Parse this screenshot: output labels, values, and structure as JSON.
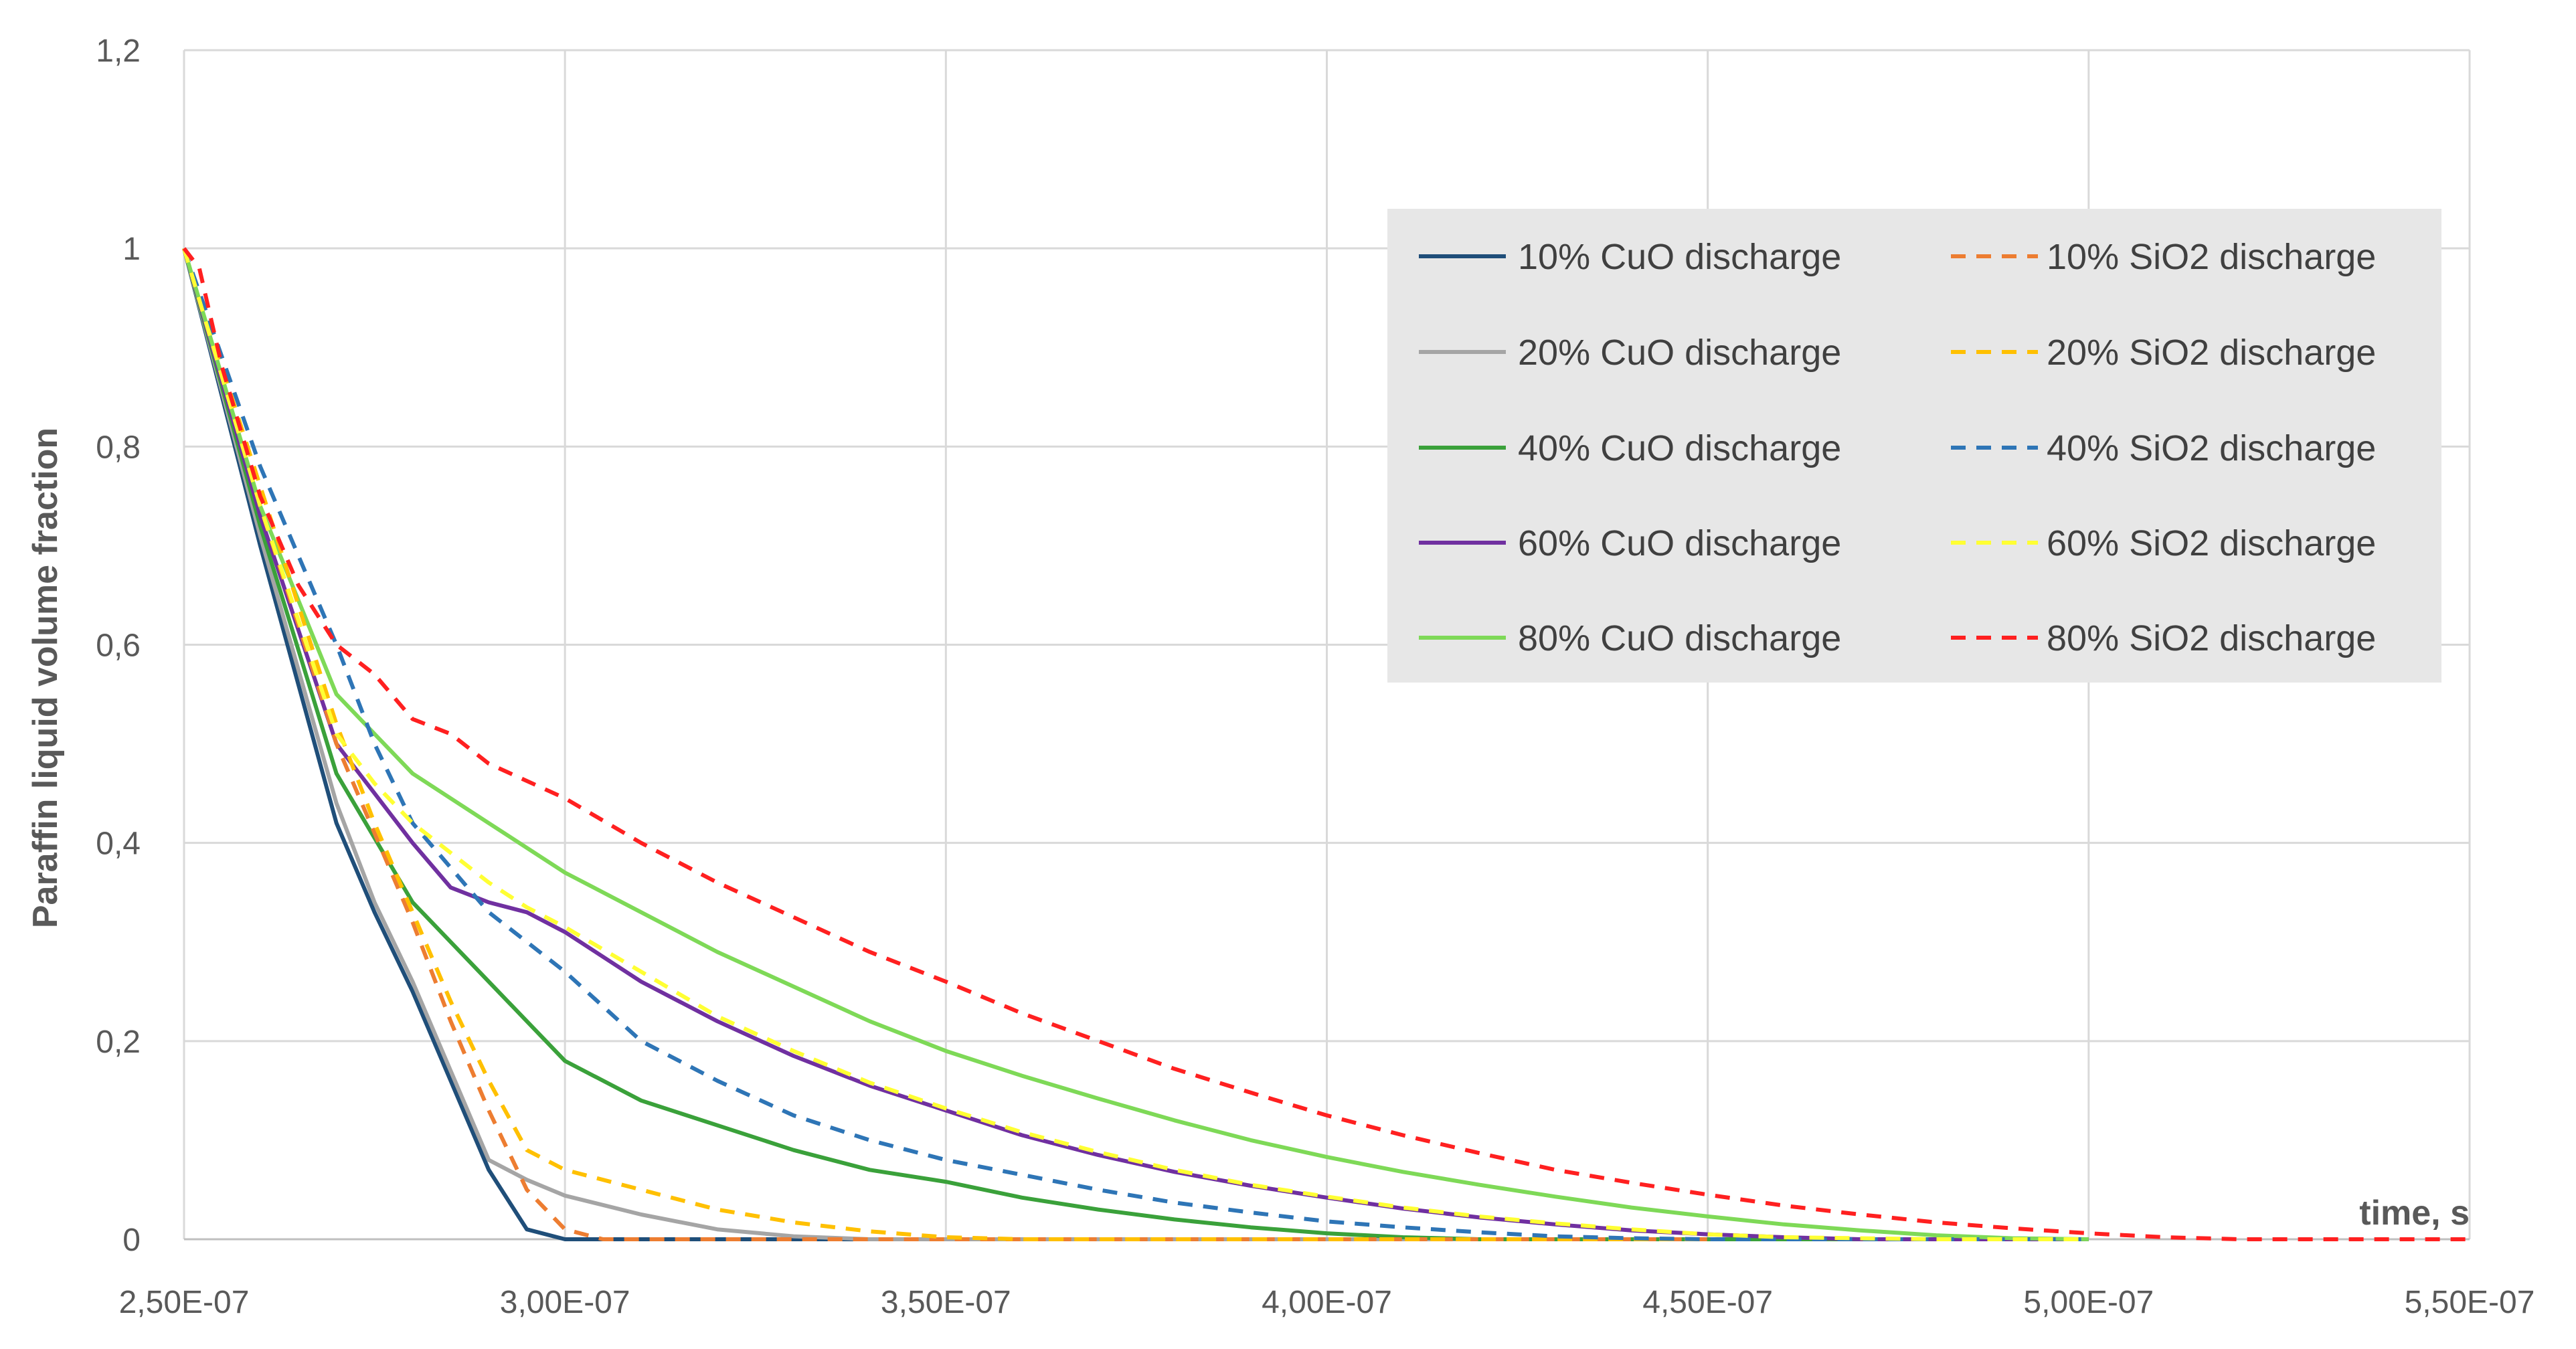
{
  "chart_data": {
    "type": "line",
    "xlabel": "time, s",
    "ylabel": "Paraffin  liquid volume fraction",
    "xlim": [
      2.5e-07,
      5.5e-07
    ],
    "ylim": [
      0,
      1.2
    ],
    "x_ticks": [
      "2,50E-07",
      "3,00E-07",
      "3,50E-07",
      "4,00E-07",
      "4,50E-07",
      "5,00E-07",
      "5,50E-07"
    ],
    "y_ticks": [
      "0",
      "0,2",
      "0,4",
      "0,6",
      "0,8",
      "1",
      "1,2"
    ],
    "grid": true,
    "legend_position": "top-right",
    "series": [
      {
        "name": "10% CuO discharge",
        "color": "#1f4e79",
        "dash": false,
        "points": [
          [
            2.5e-07,
            1
          ],
          [
            2.6e-07,
            0.7
          ],
          [
            2.7e-07,
            0.42
          ],
          [
            2.75e-07,
            0.33
          ],
          [
            2.8e-07,
            0.25
          ],
          [
            2.85e-07,
            0.16
          ],
          [
            2.9e-07,
            0.07
          ],
          [
            2.95e-07,
            0.01
          ],
          [
            3e-07,
            0
          ],
          [
            5e-07,
            0
          ]
        ]
      },
      {
        "name": "20% CuO discharge",
        "color": "#a5a5a5",
        "dash": false,
        "points": [
          [
            2.5e-07,
            1
          ],
          [
            2.6e-07,
            0.71
          ],
          [
            2.7e-07,
            0.44
          ],
          [
            2.75e-07,
            0.34
          ],
          [
            2.8e-07,
            0.26
          ],
          [
            2.85e-07,
            0.17
          ],
          [
            2.9e-07,
            0.08
          ],
          [
            2.95e-07,
            0.06
          ],
          [
            3e-07,
            0.044
          ],
          [
            3.1e-07,
            0.025
          ],
          [
            3.2e-07,
            0.01
          ],
          [
            3.3e-07,
            0.003
          ],
          [
            3.4e-07,
            0
          ],
          [
            5e-07,
            0
          ]
        ]
      },
      {
        "name": "40% CuO discharge",
        "color": "#3aa13a",
        "dash": false,
        "points": [
          [
            2.5e-07,
            1
          ],
          [
            2.6e-07,
            0.72
          ],
          [
            2.7e-07,
            0.47
          ],
          [
            2.8e-07,
            0.34
          ],
          [
            2.9e-07,
            0.26
          ],
          [
            3e-07,
            0.18
          ],
          [
            3.1e-07,
            0.14
          ],
          [
            3.2e-07,
            0.115
          ],
          [
            3.3e-07,
            0.09
          ],
          [
            3.4e-07,
            0.07
          ],
          [
            3.5e-07,
            0.058
          ],
          [
            3.6e-07,
            0.042
          ],
          [
            3.7e-07,
            0.03
          ],
          [
            3.8e-07,
            0.02
          ],
          [
            3.9e-07,
            0.012
          ],
          [
            4e-07,
            0.006
          ],
          [
            4.1e-07,
            0.002
          ],
          [
            4.2e-07,
            0
          ],
          [
            5e-07,
            0
          ]
        ]
      },
      {
        "name": "60% CuO discharge",
        "color": "#7030a0",
        "dash": false,
        "points": [
          [
            2.5e-07,
            1
          ],
          [
            2.6e-07,
            0.73
          ],
          [
            2.7e-07,
            0.5
          ],
          [
            2.75e-07,
            0.45
          ],
          [
            2.8e-07,
            0.4
          ],
          [
            2.85e-07,
            0.355
          ],
          [
            2.9e-07,
            0.34
          ],
          [
            2.95e-07,
            0.33
          ],
          [
            3e-07,
            0.31
          ],
          [
            3.1e-07,
            0.26
          ],
          [
            3.2e-07,
            0.22
          ],
          [
            3.3e-07,
            0.185
          ],
          [
            3.4e-07,
            0.155
          ],
          [
            3.5e-07,
            0.13
          ],
          [
            3.6e-07,
            0.105
          ],
          [
            3.7e-07,
            0.085
          ],
          [
            3.8e-07,
            0.068
          ],
          [
            3.9e-07,
            0.054
          ],
          [
            4e-07,
            0.042
          ],
          [
            4.1e-07,
            0.031
          ],
          [
            4.2e-07,
            0.022
          ],
          [
            4.3e-07,
            0.015
          ],
          [
            4.4e-07,
            0.009
          ],
          [
            4.5e-07,
            0.005
          ],
          [
            4.6e-07,
            0.002
          ],
          [
            4.7e-07,
            0
          ],
          [
            5e-07,
            0
          ]
        ]
      },
      {
        "name": "80% CuO discharge",
        "color": "#7ed957",
        "dash": false,
        "points": [
          [
            2.5e-07,
            1
          ],
          [
            2.6e-07,
            0.74
          ],
          [
            2.7e-07,
            0.55
          ],
          [
            2.75e-07,
            0.51
          ],
          [
            2.8e-07,
            0.47
          ],
          [
            2.9e-07,
            0.42
          ],
          [
            3e-07,
            0.37
          ],
          [
            3.1e-07,
            0.33
          ],
          [
            3.2e-07,
            0.29
          ],
          [
            3.3e-07,
            0.255
          ],
          [
            3.4e-07,
            0.22
          ],
          [
            3.5e-07,
            0.19
          ],
          [
            3.6e-07,
            0.165
          ],
          [
            3.7e-07,
            0.142
          ],
          [
            3.8e-07,
            0.12
          ],
          [
            3.9e-07,
            0.1
          ],
          [
            4e-07,
            0.083
          ],
          [
            4.1e-07,
            0.068
          ],
          [
            4.2e-07,
            0.055
          ],
          [
            4.3e-07,
            0.043
          ],
          [
            4.4e-07,
            0.032
          ],
          [
            4.5e-07,
            0.023
          ],
          [
            4.6e-07,
            0.015
          ],
          [
            4.7e-07,
            0.009
          ],
          [
            4.8e-07,
            0.004
          ],
          [
            4.9e-07,
            0.001
          ],
          [
            5e-07,
            0
          ]
        ]
      },
      {
        "name": "10% SiO2 discharge",
        "color": "#ed7d31",
        "dash": true,
        "points": [
          [
            2.5e-07,
            1
          ],
          [
            2.6e-07,
            0.74
          ],
          [
            2.7e-07,
            0.5
          ],
          [
            2.75e-07,
            0.41
          ],
          [
            2.8e-07,
            0.32
          ],
          [
            2.85e-07,
            0.22
          ],
          [
            2.9e-07,
            0.13
          ],
          [
            2.95e-07,
            0.05
          ],
          [
            3e-07,
            0.01
          ],
          [
            3.05e-07,
            0
          ],
          [
            4.5e-07,
            0
          ]
        ]
      },
      {
        "name": "20% SiO2 discharge",
        "color": "#ffc000",
        "dash": true,
        "points": [
          [
            2.5e-07,
            1
          ],
          [
            2.6e-07,
            0.76
          ],
          [
            2.7e-07,
            0.52
          ],
          [
            2.75e-07,
            0.42
          ],
          [
            2.8e-07,
            0.33
          ],
          [
            2.85e-07,
            0.24
          ],
          [
            2.9e-07,
            0.16
          ],
          [
            2.95e-07,
            0.09
          ],
          [
            3e-07,
            0.07
          ],
          [
            3.1e-07,
            0.05
          ],
          [
            3.2e-07,
            0.03
          ],
          [
            3.3e-07,
            0.017
          ],
          [
            3.4e-07,
            0.008
          ],
          [
            3.5e-07,
            0.002
          ],
          [
            3.6e-07,
            0
          ],
          [
            4.5e-07,
            0
          ]
        ]
      },
      {
        "name": "40% SiO2 discharge",
        "color": "#2e75b6",
        "dash": true,
        "points": [
          [
            2.5e-07,
            1
          ],
          [
            2.6e-07,
            0.78
          ],
          [
            2.7e-07,
            0.6
          ],
          [
            2.75e-07,
            0.5
          ],
          [
            2.8e-07,
            0.42
          ],
          [
            2.9e-07,
            0.33
          ],
          [
            3e-07,
            0.27
          ],
          [
            3.1e-07,
            0.2
          ],
          [
            3.2e-07,
            0.16
          ],
          [
            3.3e-07,
            0.125
          ],
          [
            3.4e-07,
            0.1
          ],
          [
            3.5e-07,
            0.08
          ],
          [
            3.6e-07,
            0.065
          ],
          [
            3.7e-07,
            0.05
          ],
          [
            3.8e-07,
            0.037
          ],
          [
            3.9e-07,
            0.027
          ],
          [
            4e-07,
            0.018
          ],
          [
            4.1e-07,
            0.012
          ],
          [
            4.2e-07,
            0.007
          ],
          [
            4.3e-07,
            0.003
          ],
          [
            4.4e-07,
            0.001
          ],
          [
            4.5e-07,
            0
          ],
          [
            5e-07,
            0
          ]
        ]
      },
      {
        "name": "60% SiO2 discharge",
        "color": "#ffff33",
        "dash": true,
        "points": [
          [
            2.5e-07,
            1
          ],
          [
            2.6e-07,
            0.74
          ],
          [
            2.7e-07,
            0.51
          ],
          [
            2.75e-07,
            0.46
          ],
          [
            2.8e-07,
            0.42
          ],
          [
            2.85e-07,
            0.39
          ],
          [
            2.9e-07,
            0.36
          ],
          [
            2.95e-07,
            0.335
          ],
          [
            3e-07,
            0.315
          ],
          [
            3.1e-07,
            0.27
          ],
          [
            3.2e-07,
            0.225
          ],
          [
            3.3e-07,
            0.19
          ],
          [
            3.4e-07,
            0.158
          ],
          [
            3.5e-07,
            0.132
          ],
          [
            3.6e-07,
            0.108
          ],
          [
            3.7e-07,
            0.088
          ],
          [
            3.8e-07,
            0.07
          ],
          [
            3.9e-07,
            0.055
          ],
          [
            4e-07,
            0.043
          ],
          [
            4.1e-07,
            0.032
          ],
          [
            4.2e-07,
            0.023
          ],
          [
            4.3e-07,
            0.016
          ],
          [
            4.4e-07,
            0.01
          ],
          [
            4.5e-07,
            0.005
          ],
          [
            4.6e-07,
            0.002
          ],
          [
            4.7e-07,
            0.001
          ],
          [
            4.8e-07,
            0
          ],
          [
            5e-07,
            0
          ]
        ]
      },
      {
        "name": "80% SiO2 discharge",
        "color": "#ff2020",
        "dash": true,
        "points": [
          [
            2.5e-07,
            1
          ],
          [
            2.52e-07,
            0.98
          ],
          [
            2.55e-07,
            0.88
          ],
          [
            2.6e-07,
            0.75
          ],
          [
            2.65e-07,
            0.66
          ],
          [
            2.7e-07,
            0.6
          ],
          [
            2.75e-07,
            0.57
          ],
          [
            2.8e-07,
            0.525
          ],
          [
            2.85e-07,
            0.51
          ],
          [
            2.9e-07,
            0.48
          ],
          [
            3e-07,
            0.445
          ],
          [
            3.1e-07,
            0.4
          ],
          [
            3.2e-07,
            0.36
          ],
          [
            3.3e-07,
            0.325
          ],
          [
            3.4e-07,
            0.29
          ],
          [
            3.5e-07,
            0.26
          ],
          [
            3.6e-07,
            0.228
          ],
          [
            3.7e-07,
            0.2
          ],
          [
            3.8e-07,
            0.172
          ],
          [
            3.9e-07,
            0.148
          ],
          [
            4e-07,
            0.125
          ],
          [
            4.1e-07,
            0.105
          ],
          [
            4.2e-07,
            0.087
          ],
          [
            4.3e-07,
            0.07
          ],
          [
            4.4e-07,
            0.057
          ],
          [
            4.5e-07,
            0.045
          ],
          [
            4.6e-07,
            0.034
          ],
          [
            4.7e-07,
            0.025
          ],
          [
            4.8e-07,
            0.017
          ],
          [
            4.9e-07,
            0.011
          ],
          [
            5e-07,
            0.006
          ],
          [
            5.1e-07,
            0.002
          ],
          [
            5.2e-07,
            0
          ],
          [
            5.5e-07,
            0
          ]
        ]
      }
    ]
  }
}
